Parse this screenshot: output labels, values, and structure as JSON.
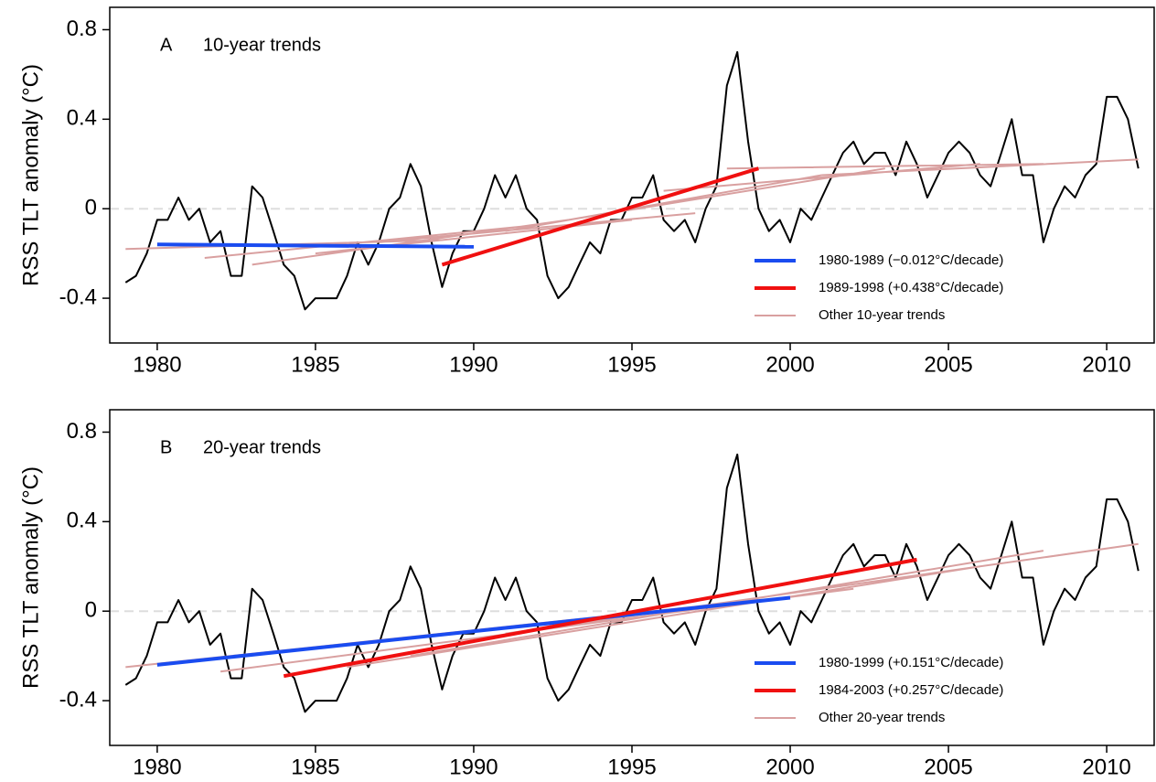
{
  "chart_data": [
    {
      "type": "line",
      "panel": "A",
      "title": "10-year trends",
      "ylabel": "RSS TLT anomaly (°C)",
      "xlim": [
        1978.5,
        2011.5
      ],
      "ylim": [
        -0.6,
        0.9
      ],
      "xticks": [
        1980,
        1985,
        1990,
        1995,
        2000,
        2005,
        2010
      ],
      "yticks": [
        -0.4,
        0,
        0.4,
        0.8
      ],
      "zero_line": true,
      "legend": "lower right",
      "color": "#000000",
      "x": [
        1979.0,
        1979.33,
        1979.67,
        1980.0,
        1980.33,
        1980.67,
        1981.0,
        1981.33,
        1981.67,
        1982.0,
        1982.33,
        1982.67,
        1983.0,
        1983.33,
        1983.67,
        1984.0,
        1984.33,
        1984.67,
        1985.0,
        1985.33,
        1985.67,
        1986.0,
        1986.33,
        1986.67,
        1987.0,
        1987.33,
        1987.67,
        1988.0,
        1988.33,
        1988.67,
        1989.0,
        1989.33,
        1989.67,
        1990.0,
        1990.33,
        1990.67,
        1991.0,
        1991.33,
        1991.67,
        1992.0,
        1992.33,
        1992.67,
        1993.0,
        1993.33,
        1993.67,
        1994.0,
        1994.33,
        1994.67,
        1995.0,
        1995.33,
        1995.67,
        1996.0,
        1996.33,
        1996.67,
        1997.0,
        1997.33,
        1997.67,
        1998.0,
        1998.33,
        1998.67,
        1999.0,
        1999.33,
        1999.67,
        2000.0,
        2000.33,
        2000.67,
        2001.0,
        2001.33,
        2001.67,
        2002.0,
        2002.33,
        2002.67,
        2003.0,
        2003.33,
        2003.67,
        2004.0,
        2004.33,
        2004.67,
        2005.0,
        2005.33,
        2005.67,
        2006.0,
        2006.33,
        2006.67,
        2007.0,
        2007.33,
        2007.67,
        2008.0,
        2008.33,
        2008.67,
        2009.0,
        2009.33,
        2009.67,
        2010.0,
        2010.33,
        2010.67,
        2011.0
      ],
      "values": [
        -0.33,
        -0.3,
        -0.2,
        -0.05,
        -0.05,
        0.05,
        -0.05,
        0.0,
        -0.15,
        -0.1,
        -0.3,
        -0.3,
        0.1,
        0.05,
        -0.1,
        -0.25,
        -0.3,
        -0.45,
        -0.4,
        -0.4,
        -0.4,
        -0.3,
        -0.15,
        -0.25,
        -0.15,
        0.0,
        0.05,
        0.2,
        0.1,
        -0.15,
        -0.35,
        -0.2,
        -0.1,
        -0.1,
        0.0,
        0.15,
        0.05,
        0.15,
        0.0,
        -0.05,
        -0.3,
        -0.4,
        -0.35,
        -0.25,
        -0.15,
        -0.2,
        -0.05,
        -0.05,
        0.05,
        0.05,
        0.15,
        -0.05,
        -0.1,
        -0.05,
        -0.15,
        0.0,
        0.1,
        0.55,
        0.7,
        0.3,
        0.0,
        -0.1,
        -0.05,
        -0.15,
        0.0,
        -0.05,
        0.05,
        0.15,
        0.25,
        0.3,
        0.2,
        0.25,
        0.25,
        0.15,
        0.3,
        0.2,
        0.05,
        0.15,
        0.25,
        0.3,
        0.25,
        0.15,
        0.1,
        0.25,
        0.4,
        0.15,
        0.15,
        -0.15,
        0.0,
        0.1,
        0.05,
        0.15,
        0.2,
        0.5,
        0.5,
        0.4,
        0.18
      ],
      "series": [
        {
          "name": "1980-1989 (−0.012°C/decade)",
          "color": "#1a4cf0",
          "width": 4,
          "x": [
            1980,
            1990
          ],
          "values": [
            -0.16,
            -0.17
          ]
        },
        {
          "name": "1989-1998 (+0.438°C/decade)",
          "color": "#f01010",
          "width": 4,
          "x": [
            1989,
            1999
          ],
          "values": [
            -0.25,
            0.18
          ]
        },
        {
          "name": "Other 10-year trends",
          "color": "#d9a0a0",
          "width": 2,
          "x": [
            1979,
            1989,
            null,
            1981.5,
            1991.5,
            null,
            1983,
            1993,
            null,
            1985,
            1995,
            null,
            1987,
            1997,
            null,
            1991,
            2001,
            null,
            1993,
            2003,
            null,
            1996,
            2006,
            null,
            1998,
            2008,
            null,
            2001,
            2011
          ],
          "values": [
            -0.18,
            -0.14,
            null,
            -0.22,
            -0.08,
            null,
            -0.25,
            -0.05,
            null,
            -0.2,
            -0.05,
            null,
            -0.15,
            -0.02,
            null,
            -0.1,
            0.15,
            null,
            -0.05,
            0.18,
            null,
            0.08,
            0.2,
            null,
            0.18,
            0.2,
            null,
            0.15,
            0.22
          ]
        }
      ]
    },
    {
      "type": "line",
      "panel": "B",
      "title": "20-year trends",
      "ylabel": "RSS TLT anomaly (°C)",
      "xlim": [
        1978.5,
        2011.5
      ],
      "ylim": [
        -0.6,
        0.9
      ],
      "xticks": [
        1980,
        1985,
        1990,
        1995,
        2000,
        2005,
        2010
      ],
      "yticks": [
        -0.4,
        0,
        0.4,
        0.8
      ],
      "zero_line": true,
      "legend": "lower right",
      "color": "#000000",
      "x": [
        1979.0,
        1979.33,
        1979.67,
        1980.0,
        1980.33,
        1980.67,
        1981.0,
        1981.33,
        1981.67,
        1982.0,
        1982.33,
        1982.67,
        1983.0,
        1983.33,
        1983.67,
        1984.0,
        1984.33,
        1984.67,
        1985.0,
        1985.33,
        1985.67,
        1986.0,
        1986.33,
        1986.67,
        1987.0,
        1987.33,
        1987.67,
        1988.0,
        1988.33,
        1988.67,
        1989.0,
        1989.33,
        1989.67,
        1990.0,
        1990.33,
        1990.67,
        1991.0,
        1991.33,
        1991.67,
        1992.0,
        1992.33,
        1992.67,
        1993.0,
        1993.33,
        1993.67,
        1994.0,
        1994.33,
        1994.67,
        1995.0,
        1995.33,
        1995.67,
        1996.0,
        1996.33,
        1996.67,
        1997.0,
        1997.33,
        1997.67,
        1998.0,
        1998.33,
        1998.67,
        1999.0,
        1999.33,
        1999.67,
        2000.0,
        2000.33,
        2000.67,
        2001.0,
        2001.33,
        2001.67,
        2002.0,
        2002.33,
        2002.67,
        2003.0,
        2003.33,
        2003.67,
        2004.0,
        2004.33,
        2004.67,
        2005.0,
        2005.33,
        2005.67,
        2006.0,
        2006.33,
        2006.67,
        2007.0,
        2007.33,
        2007.67,
        2008.0,
        2008.33,
        2008.67,
        2009.0,
        2009.33,
        2009.67,
        2010.0,
        2010.33,
        2010.67,
        2011.0
      ],
      "values": [
        -0.33,
        -0.3,
        -0.2,
        -0.05,
        -0.05,
        0.05,
        -0.05,
        0.0,
        -0.15,
        -0.1,
        -0.3,
        -0.3,
        0.1,
        0.05,
        -0.1,
        -0.25,
        -0.3,
        -0.45,
        -0.4,
        -0.4,
        -0.4,
        -0.3,
        -0.15,
        -0.25,
        -0.15,
        0.0,
        0.05,
        0.2,
        0.1,
        -0.15,
        -0.35,
        -0.2,
        -0.1,
        -0.1,
        0.0,
        0.15,
        0.05,
        0.15,
        0.0,
        -0.05,
        -0.3,
        -0.4,
        -0.35,
        -0.25,
        -0.15,
        -0.2,
        -0.05,
        -0.05,
        0.05,
        0.05,
        0.15,
        -0.05,
        -0.1,
        -0.05,
        -0.15,
        0.0,
        0.1,
        0.55,
        0.7,
        0.3,
        0.0,
        -0.1,
        -0.05,
        -0.15,
        0.0,
        -0.05,
        0.05,
        0.15,
        0.25,
        0.3,
        0.2,
        0.25,
        0.25,
        0.15,
        0.3,
        0.2,
        0.05,
        0.15,
        0.25,
        0.3,
        0.25,
        0.15,
        0.1,
        0.25,
        0.4,
        0.15,
        0.15,
        -0.15,
        0.0,
        0.1,
        0.05,
        0.15,
        0.2,
        0.5,
        0.5,
        0.4,
        0.18
      ],
      "series": [
        {
          "name": "1980-1999 (+0.151°C/decade)",
          "color": "#1a4cf0",
          "width": 4,
          "x": [
            1980,
            2000
          ],
          "values": [
            -0.24,
            0.06
          ]
        },
        {
          "name": "1984-2003 (+0.257°C/decade)",
          "color": "#f01010",
          "width": 4,
          "x": [
            1984,
            2004
          ],
          "values": [
            -0.29,
            0.23
          ]
        },
        {
          "name": "Other 20-year trends",
          "color": "#d9a0a0",
          "width": 2,
          "x": [
            1979,
            1999,
            null,
            1982,
            2002,
            null,
            1986,
            2006,
            null,
            1988,
            2008,
            null,
            1991,
            2011
          ],
          "values": [
            -0.25,
            0.05,
            null,
            -0.27,
            0.1,
            null,
            -0.25,
            0.2,
            null,
            -0.2,
            0.27,
            null,
            -0.1,
            0.3
          ]
        }
      ]
    }
  ]
}
